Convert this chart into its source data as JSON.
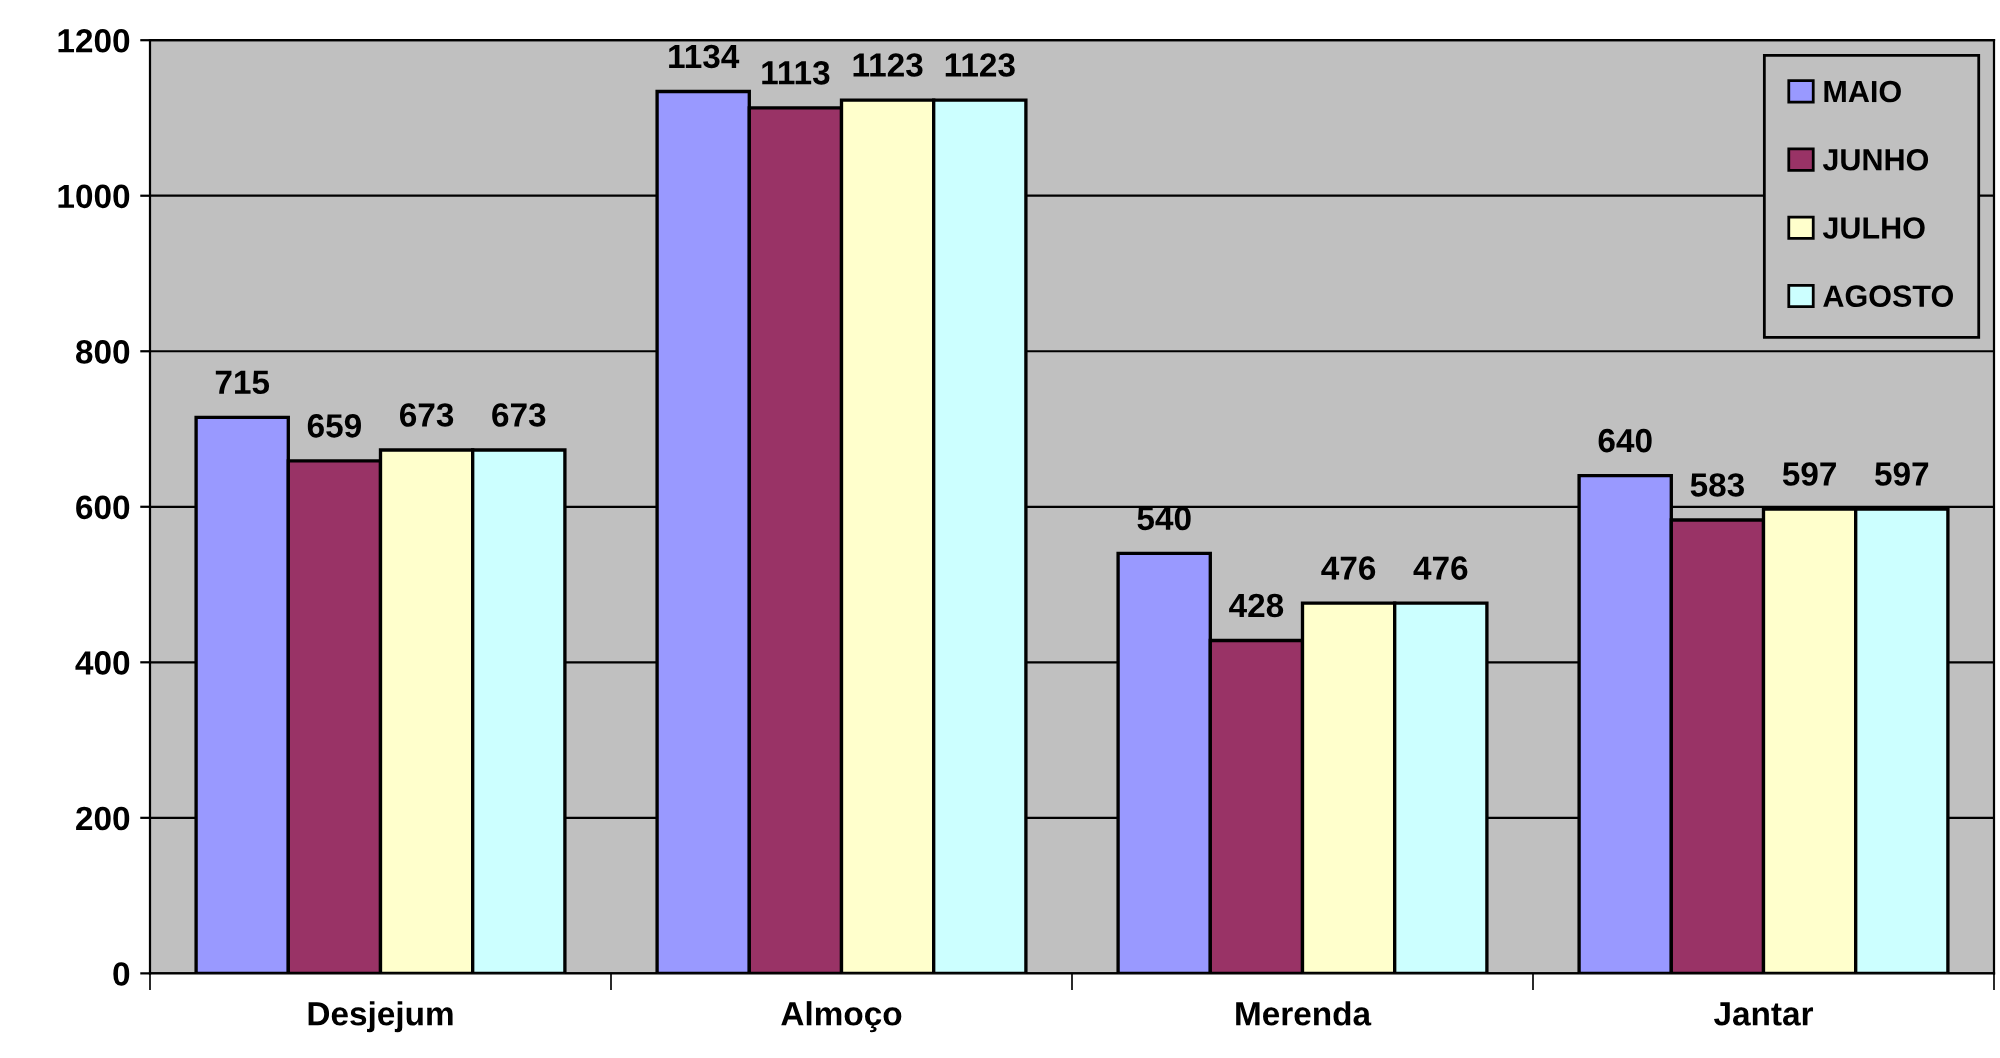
{
  "chart_data": {
    "type": "bar",
    "categories": [
      "Desjejum",
      "Almoço",
      "Merenda",
      "Jantar"
    ],
    "series": [
      {
        "name": "MAIO",
        "color": "#9999ff",
        "values": [
          715,
          1134,
          540,
          640
        ]
      },
      {
        "name": "JUNHO",
        "color": "#993366",
        "values": [
          659,
          1113,
          428,
          583
        ]
      },
      {
        "name": "JULHO",
        "color": "#ffffcc",
        "values": [
          673,
          1123,
          476,
          597
        ]
      },
      {
        "name": "AGOSTO",
        "color": "#ccffff",
        "values": [
          673,
          1123,
          476,
          597
        ]
      }
    ],
    "ylim": [
      0,
      1200
    ],
    "yticks": [
      0,
      200,
      400,
      600,
      800,
      1000,
      1200
    ],
    "grid": "y",
    "legend": "top right",
    "data_labels": true
  }
}
